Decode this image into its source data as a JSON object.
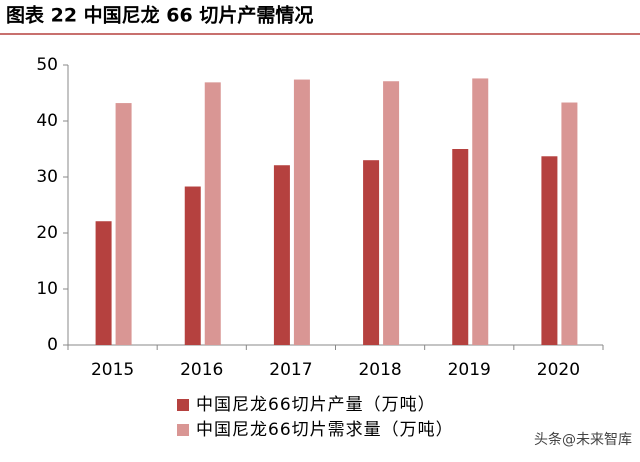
{
  "chart_data": {
    "type": "bar",
    "title": "图表 22  中国尼龙 66 切片产需情况",
    "categories": [
      "2015",
      "2016",
      "2017",
      "2018",
      "2019",
      "2020"
    ],
    "series": [
      {
        "name": "中国尼龙66切片产量（万吨）",
        "color": "#b5413f",
        "values": [
          22.1,
          28.3,
          32.1,
          33.0,
          35.0,
          33.7
        ]
      },
      {
        "name": "中国尼龙66切片需求量（万吨）",
        "color": "#d99694",
        "values": [
          43.2,
          46.9,
          47.4,
          47.1,
          47.6,
          43.3
        ]
      }
    ],
    "ylim": [
      0,
      50
    ],
    "yticks": [
      0,
      10,
      20,
      30,
      40,
      50
    ],
    "legend": "bottom",
    "watermark": "头条@未来智库"
  }
}
